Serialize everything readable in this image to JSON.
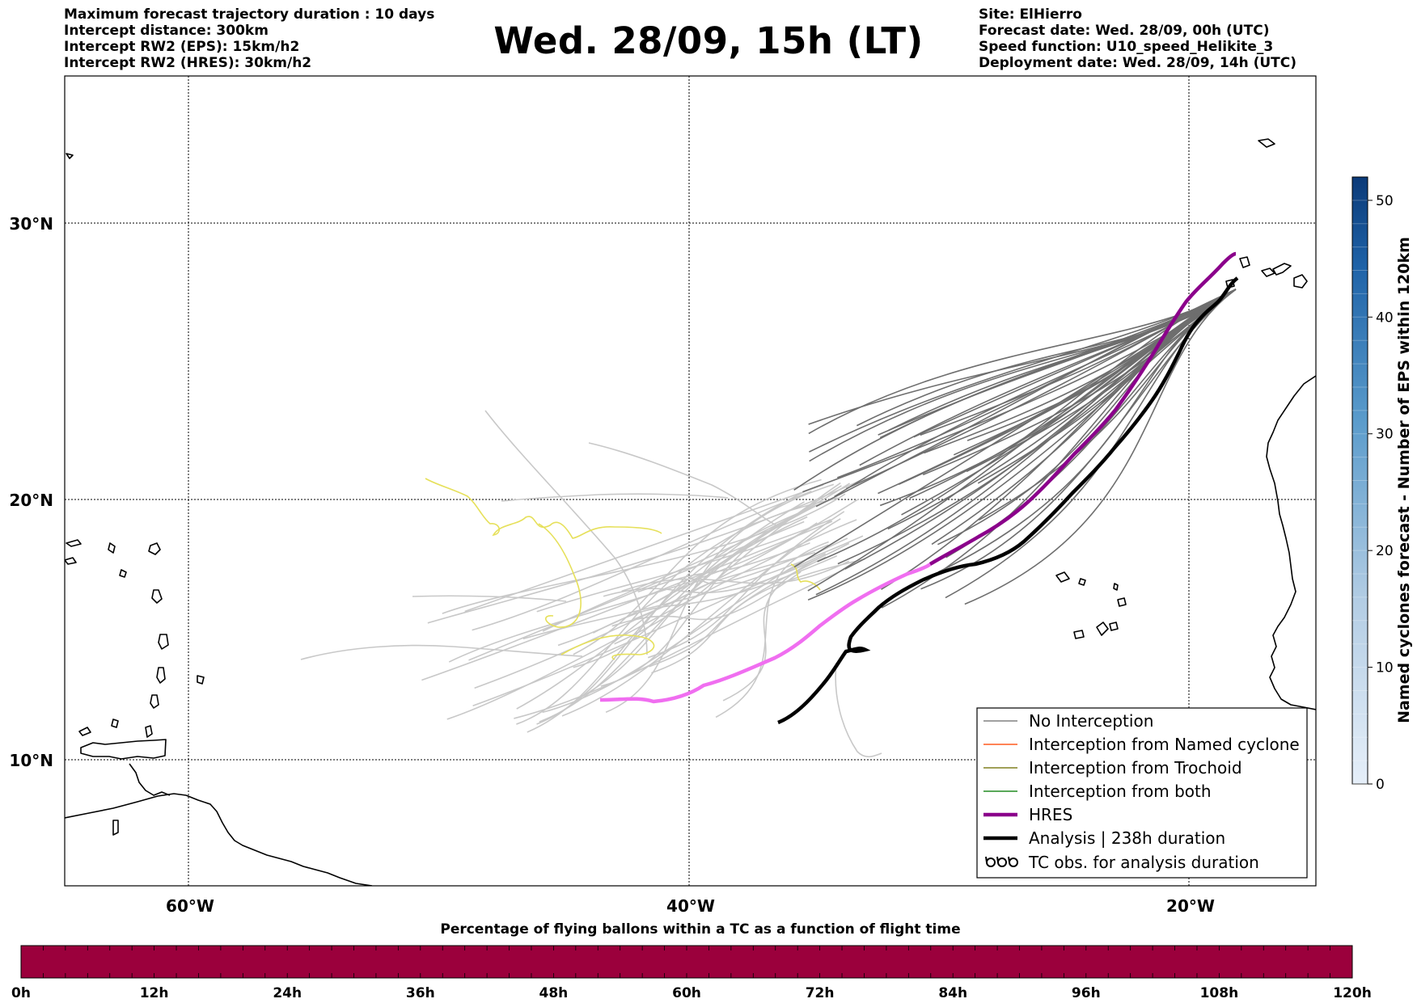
{
  "header": {
    "left_lines": [
      "Maximum forecast trajectory duration : 10 days",
      "Intercept distance: 300km",
      "Intercept RW2 (EPS):  15km/h2",
      "Intercept RW2 (HRES): 30km/h2"
    ],
    "title": "Wed. 28/09, 15h (LT)",
    "right_lines": [
      "Site: ElHierro",
      "Forecast date: Wed. 28/09, 00h (UTC)",
      "Speed function: U10_speed_Helikite_3",
      "Deployment date: Wed. 28/09, 14h (UTC)"
    ]
  },
  "map": {
    "lat_labels": [
      "30°N",
      "20°N",
      "10°N"
    ],
    "lat_values": [
      30,
      20,
      10
    ],
    "lon_labels": [
      "60°W",
      "40°W",
      "20°W"
    ],
    "lon_values": [
      -60,
      -40,
      -20
    ],
    "extent": {
      "lon": [
        -65,
        -15
      ],
      "lat": [
        5.3,
        34.6
      ]
    }
  },
  "legend": {
    "items": [
      {
        "label": "No Interception",
        "color": "#808080",
        "style": "thin"
      },
      {
        "label": "Interception from Named cyclone",
        "color": "#ff5a1e",
        "style": "thin"
      },
      {
        "label": "Interception from Trochoid",
        "color": "#808020",
        "style": "thin"
      },
      {
        "label": "Interception from both",
        "color": "#228b22",
        "style": "thin"
      },
      {
        "label": "HRES",
        "color": "#8b008b",
        "style": "thick"
      },
      {
        "label": "Analysis | 238h duration",
        "color": "#000000",
        "style": "thick"
      },
      {
        "label": "TC obs. for analysis duration",
        "color": "#000000",
        "style": "symbol"
      }
    ]
  },
  "colorbar": {
    "label": "Named cyclones forecast - Number of EPS within 120km",
    "ticks": [
      "0",
      "10",
      "20",
      "30",
      "40",
      "50"
    ],
    "tick_values": [
      0,
      10,
      20,
      30,
      40,
      50
    ],
    "max": 52,
    "color_low": "#e4eef8",
    "color_high": "#0b3a78"
  },
  "bottom_bar": {
    "title": "Percentage of flying ballons within a TC as a function of flight time",
    "ticks": [
      "0h",
      "12h",
      "24h",
      "36h",
      "48h",
      "60h",
      "72h",
      "84h",
      "96h",
      "108h",
      "120h"
    ],
    "fill_color": "#9b003c"
  },
  "colors": {
    "eps_no_interception": "#6e6e6e",
    "eps_light": "#c8c8c8",
    "eps_yellow": "#e6e05a",
    "hres_purple": "#8b008b",
    "hres_pink": "#f06ef0",
    "analysis": "#000000"
  }
}
